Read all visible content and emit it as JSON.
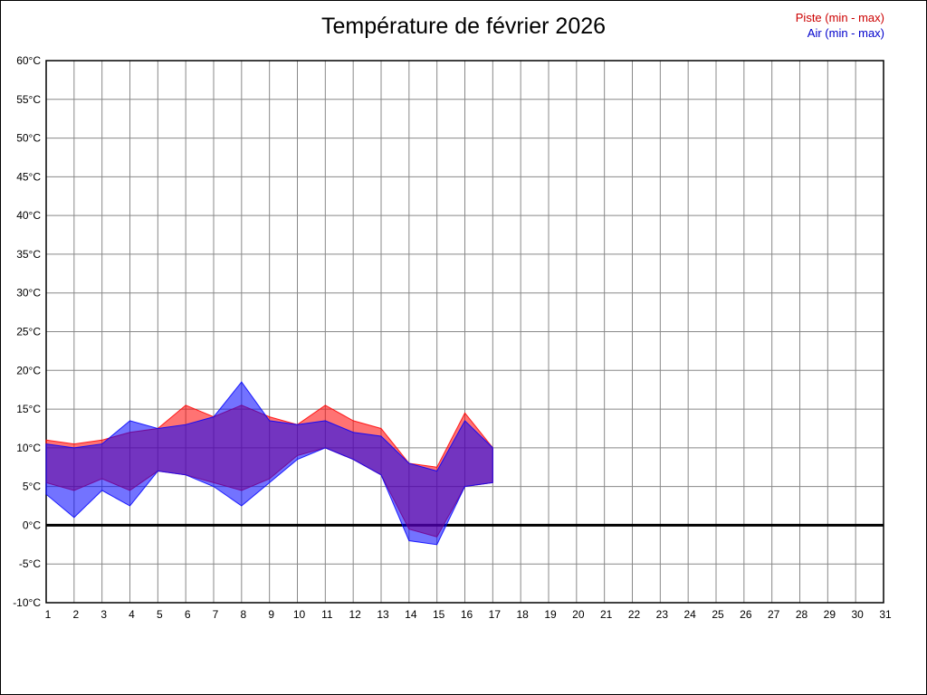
{
  "title": "Température de février 2026",
  "legend": [
    {
      "id": "piste",
      "label": "Piste (min - max)",
      "color": "#cc0000"
    },
    {
      "id": "air",
      "label": "Air (min - max)",
      "color": "#0000cc"
    }
  ],
  "chart_data": {
    "type": "area",
    "title": "Température de février 2026",
    "xlabel": "",
    "ylabel": "",
    "xlim": [
      1,
      31
    ],
    "ylim": [
      -10,
      60
    ],
    "grid": true,
    "grid_color": "#888888",
    "x_days": [
      1,
      2,
      3,
      4,
      5,
      6,
      7,
      8,
      9,
      10,
      11,
      12,
      13,
      14,
      15,
      16,
      17,
      18,
      19,
      20,
      21,
      22,
      23,
      24,
      25,
      26,
      27,
      28,
      29,
      30,
      31
    ],
    "y_ticks": [
      {
        "value": 60,
        "label": "60°C"
      },
      {
        "value": 55,
        "label": "55°C"
      },
      {
        "value": 50,
        "label": "50°C"
      },
      {
        "value": 45,
        "label": "45°C"
      },
      {
        "value": 40,
        "label": "40°C"
      },
      {
        "value": 35,
        "label": "35°C"
      },
      {
        "value": 30,
        "label": "30°C"
      },
      {
        "value": 25,
        "label": "25°C"
      },
      {
        "value": 20,
        "label": "20°C"
      },
      {
        "value": 15,
        "label": "15°C"
      },
      {
        "value": 10,
        "label": "10°C"
      },
      {
        "value": 5,
        "label": "5°C"
      },
      {
        "value": 0,
        "label": "0°C"
      },
      {
        "value": -5,
        "label": "-5°C"
      },
      {
        "value": -10,
        "label": "-10°C"
      }
    ],
    "x": [
      1,
      2,
      3,
      4,
      5,
      6,
      7,
      8,
      9,
      10,
      11,
      12,
      13,
      14,
      15,
      16,
      17
    ],
    "series": [
      {
        "id": "piste",
        "name": "Piste (min - max)",
        "color": "#ff0000",
        "fill_opacity": 0.55,
        "max": [
          11,
          10.5,
          11,
          12,
          12.5,
          15.5,
          14,
          15.5,
          14,
          13,
          15.5,
          13.5,
          12.5,
          8,
          7.5,
          14.5,
          10
        ],
        "min": [
          5.5,
          4.5,
          6,
          4.5,
          7,
          6.5,
          5.5,
          4.5,
          6,
          9,
          10,
          8.5,
          6.5,
          -0.5,
          -1.5,
          5,
          5.5
        ]
      },
      {
        "id": "air",
        "name": "Air (min - max)",
        "color": "#0000ff",
        "fill_opacity": 0.55,
        "max": [
          10.5,
          10,
          10.5,
          13.5,
          12.5,
          13,
          14,
          18.5,
          13.5,
          13,
          13.5,
          12,
          11.5,
          8,
          7,
          13.5,
          10
        ],
        "min": [
          4,
          1,
          4.5,
          2.5,
          7,
          6.5,
          5,
          2.5,
          5.5,
          8.5,
          10,
          8.5,
          6.5,
          -2,
          -2.5,
          5,
          5.5
        ]
      }
    ],
    "zero_line": {
      "value": 0,
      "color": "#000000",
      "width": 3
    },
    "legend_position": "top-right"
  }
}
